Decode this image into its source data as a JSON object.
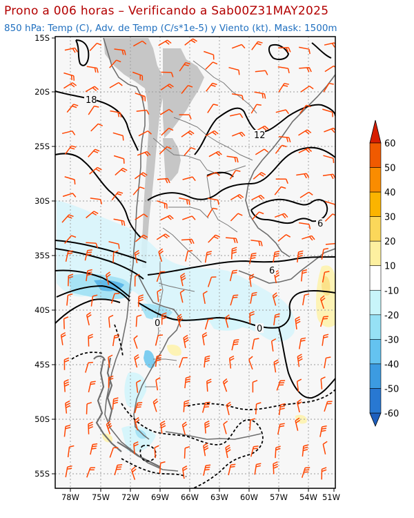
{
  "header": {
    "title": "Prono a 006 horas – Verificando a Sab00Z31MAY2025",
    "subtitle": "850 hPa: Temp (C), Adv. de Temp (C/s*1e-5) y Viento (kt). Mask: 1500m"
  },
  "axes": {
    "lat_labels": [
      "15S",
      "20S",
      "25S",
      "30S",
      "35S",
      "40S",
      "45S",
      "50S",
      "55S"
    ],
    "lon_labels": [
      "78W",
      "75W",
      "72W",
      "69W",
      "66W",
      "63W",
      "60W",
      "57W",
      "54W",
      "51W"
    ]
  },
  "contour_labels": [
    "18",
    "12",
    "6",
    "6",
    "0",
    "0"
  ],
  "colorbar": {
    "labels": [
      "60",
      "50",
      "40",
      "30",
      "20",
      "10",
      "-10",
      "-20",
      "-30",
      "-40",
      "-50",
      "-60"
    ],
    "colors": [
      "#d71e00",
      "#f05a00",
      "#fa8c00",
      "#fbb400",
      "#fbd75a",
      "#fdf0a0",
      "#ffffff",
      "#c8f5fa",
      "#96e1f5",
      "#64c3f0",
      "#3c9be1",
      "#2878d2",
      "#1e5fbe"
    ]
  },
  "map_colors": {
    "mask": "#c6c6c6",
    "background": "#f7f7f7",
    "coast": "#6e6e6e",
    "wind": "#ff4500",
    "contour": "#000000"
  }
}
